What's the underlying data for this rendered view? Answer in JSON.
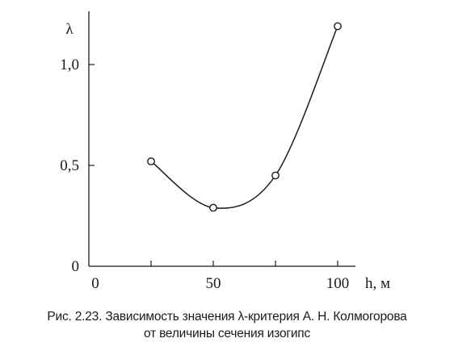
{
  "chart_data": {
    "type": "line",
    "xlabel": "h, м",
    "ylabel": "λ",
    "xlim": [
      0,
      100
    ],
    "ylim": [
      0,
      1.25
    ],
    "x_ticks": [
      {
        "value": 0,
        "label": "0"
      },
      {
        "value": 50,
        "label": "50"
      },
      {
        "value": 100,
        "label": "100"
      }
    ],
    "y_ticks": [
      {
        "value": 0,
        "label": "0"
      },
      {
        "value": 0.5,
        "label": "0,5"
      },
      {
        "value": 1.0,
        "label": "1,0"
      }
    ],
    "x_minor_ticks": [
      25,
      75
    ],
    "series": [
      {
        "x": [
          25,
          50,
          75,
          100
        ],
        "values": [
          0.52,
          0.29,
          0.45,
          1.19
        ],
        "marker": "open-circle",
        "smooth": true
      }
    ],
    "grid": false,
    "legend": "none"
  },
  "caption": {
    "line1": "Рис. 2.23. Зависимость значения λ-критерия А. Н. Колмогорова",
    "line2": "от величины сечения изогипс"
  },
  "colors": {
    "ink": "#1a1a1a",
    "background": "#ffffff"
  }
}
